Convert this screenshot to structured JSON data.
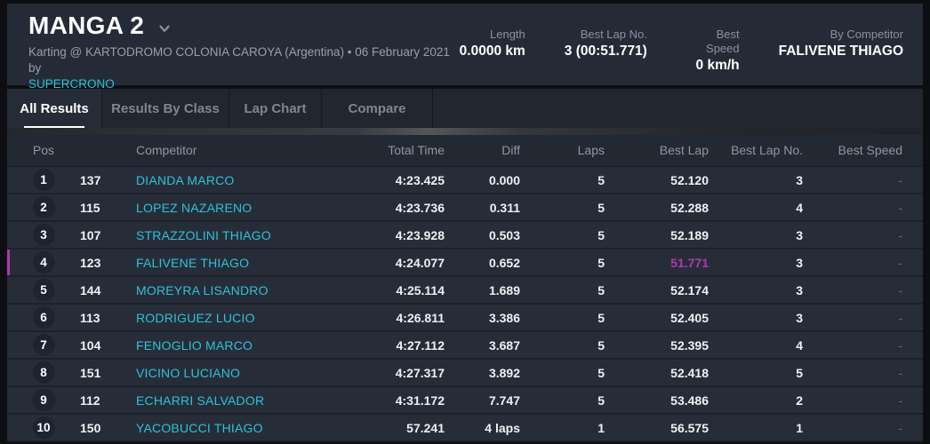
{
  "header": {
    "title": "MANGA 2",
    "subtitle_prefix": "Karting @ KARTODROMO COLONIA CAROYA (Argentina) • 06 February 2021 by",
    "subtitle_link": "SUPERCRONO",
    "stats": [
      {
        "label": "Length",
        "value": "0.0000 km"
      },
      {
        "label": "Best Lap No.",
        "value": "3 (00:51.771)"
      },
      {
        "label": "Best Speed",
        "value": "0 km/h"
      },
      {
        "label": "By Competitor",
        "value": "FALIVENE THIAGO"
      }
    ]
  },
  "tabs": [
    {
      "label": "All Results",
      "active": true
    },
    {
      "label": "Results By Class",
      "active": false
    },
    {
      "label": "Lap Chart",
      "active": false
    },
    {
      "label": "Compare",
      "active": false
    }
  ],
  "table": {
    "columns": [
      "Pos",
      "Competitor",
      "Total Time",
      "Diff",
      "Laps",
      "Best Lap",
      "Best Lap No.",
      "Best Speed"
    ],
    "rows": [
      {
        "pos": "1",
        "num": "137",
        "name": "DIANDA MARCO",
        "total": "4:23.425",
        "diff": "0.000",
        "laps": "5",
        "best_lap": "52.120",
        "best_lap_no": "3",
        "best_speed": "-",
        "highlight": false
      },
      {
        "pos": "2",
        "num": "115",
        "name": "LOPEZ NAZARENO",
        "total": "4:23.736",
        "diff": "0.311",
        "laps": "5",
        "best_lap": "52.288",
        "best_lap_no": "4",
        "best_speed": "-",
        "highlight": false
      },
      {
        "pos": "3",
        "num": "107",
        "name": "STRAZZOLINI THIAGO",
        "total": "4:23.928",
        "diff": "0.503",
        "laps": "5",
        "best_lap": "52.189",
        "best_lap_no": "3",
        "best_speed": "-",
        "highlight": false
      },
      {
        "pos": "4",
        "num": "123",
        "name": "FALIVENE THIAGO",
        "total": "4:24.077",
        "diff": "0.652",
        "laps": "5",
        "best_lap": "51.771",
        "best_lap_no": "3",
        "best_speed": "-",
        "highlight": true
      },
      {
        "pos": "5",
        "num": "144",
        "name": "MOREYRA LISANDRO",
        "total": "4:25.114",
        "diff": "1.689",
        "laps": "5",
        "best_lap": "52.174",
        "best_lap_no": "3",
        "best_speed": "-",
        "highlight": false
      },
      {
        "pos": "6",
        "num": "113",
        "name": "RODRIGUEZ LUCIO",
        "total": "4:26.811",
        "diff": "3.386",
        "laps": "5",
        "best_lap": "52.405",
        "best_lap_no": "3",
        "best_speed": "-",
        "highlight": false
      },
      {
        "pos": "7",
        "num": "104",
        "name": "FENOGLIO MARCO",
        "total": "4:27.112",
        "diff": "3.687",
        "laps": "5",
        "best_lap": "52.395",
        "best_lap_no": "4",
        "best_speed": "-",
        "highlight": false
      },
      {
        "pos": "8",
        "num": "151",
        "name": "VICINO LUCIANO",
        "total": "4:27.317",
        "diff": "3.892",
        "laps": "5",
        "best_lap": "52.418",
        "best_lap_no": "5",
        "best_speed": "-",
        "highlight": false
      },
      {
        "pos": "9",
        "num": "112",
        "name": "ECHARRI SALVADOR",
        "total": "4:31.172",
        "diff": "7.747",
        "laps": "5",
        "best_lap": "53.486",
        "best_lap_no": "2",
        "best_speed": "-",
        "highlight": false
      },
      {
        "pos": "10",
        "num": "150",
        "name": "YACOBUCCI THIAGO",
        "total": "57.241",
        "diff": "4 laps",
        "laps": "1",
        "best_lap": "56.575",
        "best_lap_no": "1",
        "best_speed": "-",
        "highlight": false
      }
    ]
  },
  "colors": {
    "page_bg": "#0c0e12",
    "panel_bg": "#252b36",
    "tabbar_bg": "#21262f",
    "table_header_bg": "#232933",
    "row_bg": "#272d38",
    "row_divider": "#1b212b",
    "badge_bg": "#1d2330",
    "accent_cyan": "#2ec2d7",
    "magenta": "#b237b4",
    "text_primary": "#f0f3f5",
    "text_muted": "#97a0aa",
    "text_dim": "#5f6873"
  }
}
